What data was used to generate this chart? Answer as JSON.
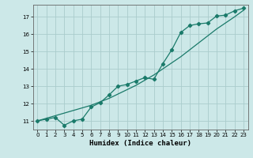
{
  "xlabel": "Humidex (Indice chaleur)",
  "background_color": "#cce8e8",
  "grid_color": "#aacccc",
  "line_color": "#1a7a6a",
  "xlim": [
    -0.5,
    23.5
  ],
  "ylim": [
    10.5,
    17.7
  ],
  "xticks": [
    0,
    1,
    2,
    3,
    4,
    5,
    6,
    7,
    8,
    9,
    10,
    11,
    12,
    13,
    14,
    15,
    16,
    17,
    18,
    19,
    20,
    21,
    22,
    23
  ],
  "yticks": [
    11,
    12,
    13,
    14,
    15,
    16,
    17
  ],
  "line1_x": [
    0,
    1,
    2,
    3,
    4,
    5,
    6,
    7,
    8,
    9,
    10,
    11,
    12,
    13,
    14,
    15,
    16,
    17,
    18,
    19,
    20,
    21,
    22,
    23
  ],
  "line1_y": [
    11.0,
    11.1,
    11.2,
    10.75,
    11.0,
    11.1,
    11.8,
    12.05,
    12.5,
    13.0,
    13.1,
    13.3,
    13.5,
    13.4,
    14.3,
    15.1,
    16.1,
    16.5,
    16.6,
    16.65,
    17.05,
    17.1,
    17.35,
    17.5
  ],
  "line2_x": [
    0,
    1,
    2,
    3,
    4,
    5,
    6,
    7,
    8,
    9,
    10,
    11,
    12,
    13,
    14,
    15,
    16,
    17,
    18,
    19,
    20,
    21,
    22,
    23
  ],
  "line2_y": [
    11.0,
    11.15,
    11.3,
    11.45,
    11.6,
    11.75,
    11.9,
    12.1,
    12.3,
    12.55,
    12.8,
    13.05,
    13.35,
    13.65,
    14.0,
    14.35,
    14.7,
    15.1,
    15.5,
    15.9,
    16.3,
    16.65,
    17.0,
    17.38
  ]
}
